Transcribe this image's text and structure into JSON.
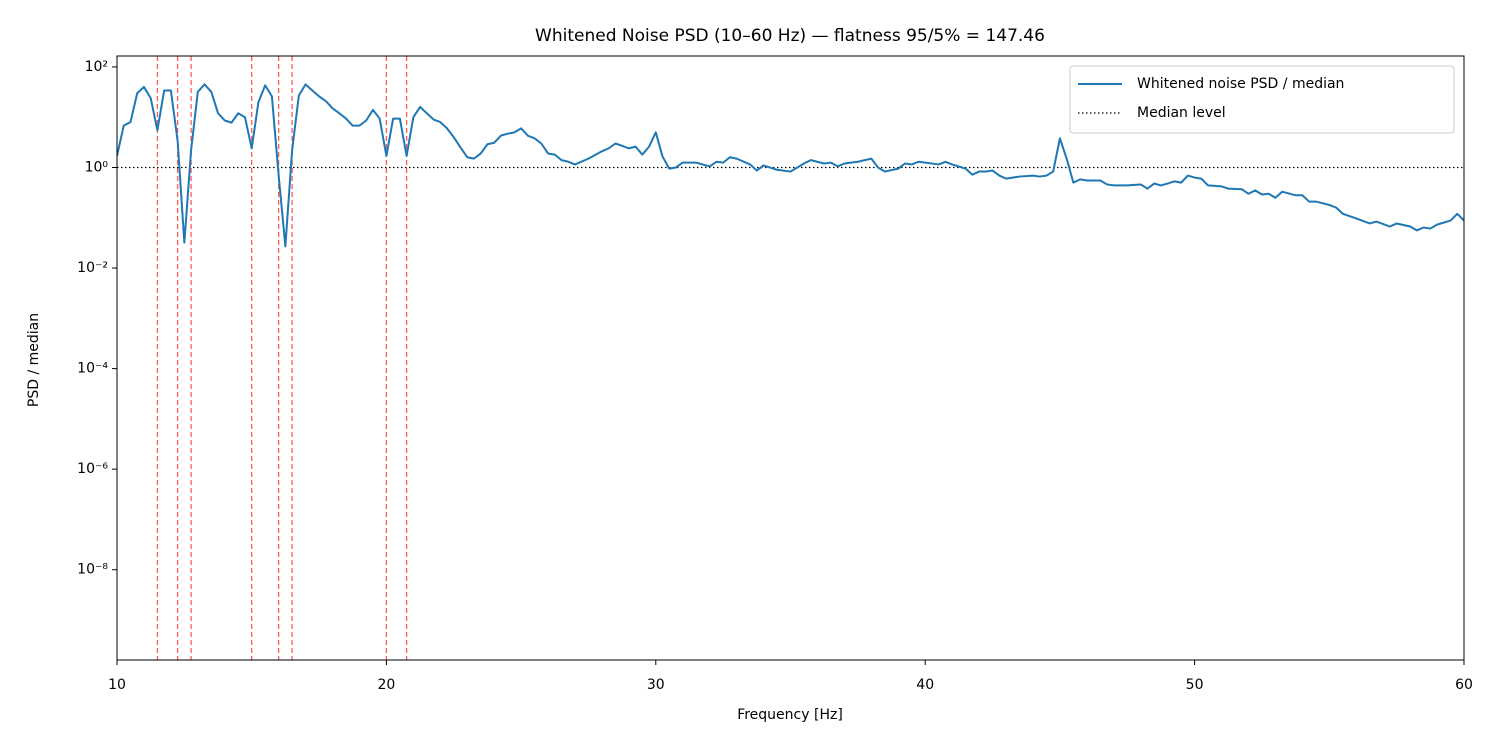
{
  "chart_data": {
    "type": "line",
    "title": "Whitened Noise PSD (10–60 Hz) — flatness 95/5% = 147.46",
    "x_label": "Frequency [Hz]",
    "y_label": "PSD / median",
    "yscale": "log",
    "xlim": [
      10,
      60
    ],
    "ylim": [
      1.6e-10,
      165
    ],
    "xticks": [
      10,
      20,
      30,
      40,
      50,
      60
    ],
    "yticks": [
      {
        "value": 100,
        "label": "10²"
      },
      {
        "value": 1,
        "label": "10⁰"
      },
      {
        "value": 0.01,
        "label": "10⁻²"
      },
      {
        "value": 0.0001,
        "label": "10⁻⁴"
      },
      {
        "value": 1e-06,
        "label": "10⁻⁶"
      },
      {
        "value": 1e-08,
        "label": "10⁻⁸"
      }
    ],
    "legend_position": "upper right",
    "x": [
      10.0,
      10.25,
      10.5,
      10.75,
      11.0,
      11.25,
      11.5,
      11.75,
      12.0,
      12.25,
      12.5,
      12.75,
      13.0,
      13.25,
      13.5,
      13.75,
      14.0,
      14.25,
      14.5,
      14.75,
      15.0,
      15.25,
      15.5,
      15.75,
      16.0,
      16.25,
      16.5,
      16.75,
      17.0,
      17.25,
      17.5,
      17.75,
      18.0,
      18.25,
      18.5,
      18.75,
      19.0,
      19.25,
      19.5,
      19.75,
      20.0,
      20.25,
      20.5,
      20.75,
      21.0,
      21.25,
      21.5,
      21.75,
      22.0,
      22.25,
      22.5,
      22.75,
      23.0,
      23.25,
      23.5,
      23.75,
      24.0,
      24.25,
      24.5,
      24.75,
      25.0,
      25.25,
      25.5,
      25.75,
      26.0,
      26.25,
      26.5,
      26.75,
      27.0,
      27.5,
      28.0,
      28.25,
      28.5,
      28.75,
      29.0,
      29.25,
      29.5,
      29.75,
      30.0,
      30.25,
      30.5,
      30.75,
      31.0,
      31.5,
      32.0,
      32.25,
      32.5,
      32.75,
      33.0,
      33.5,
      33.75,
      34.0,
      34.5,
      35.0,
      35.5,
      35.75,
      36.25,
      36.5,
      36.75,
      37.0,
      37.5,
      38.0,
      38.25,
      38.5,
      39.0,
      39.25,
      39.5,
      39.75,
      40.0,
      40.5,
      40.75,
      41.0,
      41.5,
      41.75,
      42.0,
      42.25,
      42.5,
      42.75,
      43.0,
      43.5,
      44.0,
      44.25,
      44.5,
      44.75,
      45.0,
      45.25,
      45.5,
      45.75,
      46.0,
      46.5,
      46.75,
      47.0,
      47.5,
      48.0,
      48.25,
      48.5,
      48.75,
      49.0,
      49.25,
      49.5,
      49.75,
      50.0,
      50.25,
      50.5,
      51.0,
      51.25,
      51.75,
      52.0,
      52.25,
      52.5,
      52.75,
      53.0,
      53.25,
      53.75,
      54.0,
      54.25,
      54.5,
      55.0,
      55.25,
      55.5,
      56.0,
      56.5,
      56.75,
      57.25,
      57.5,
      58.0,
      58.25,
      58.5,
      58.75,
      59.0,
      59.5,
      59.75,
      60.0
    ],
    "series": [
      {
        "name": "Whitened noise PSD / median",
        "color": "#1f77b4",
        "values": [
          1.7,
          6.8,
          8,
          30,
          40,
          24,
          5.5,
          34,
          34,
          3.4,
          0.032,
          2.2,
          32,
          45,
          32,
          12,
          8.6,
          7.8,
          12,
          10,
          2.4,
          20,
          43,
          26,
          0.7,
          0.027,
          2.2,
          27,
          45,
          34,
          26,
          21,
          15,
          12,
          9.4,
          6.8,
          6.8,
          8.6,
          14,
          9.4,
          1.7,
          9.4,
          9.4,
          1.7,
          10,
          16,
          12,
          9,
          8,
          6,
          4,
          2.5,
          1.6,
          1.5,
          1.9,
          2.9,
          3.1,
          4.3,
          4.7,
          5,
          6,
          4.3,
          3.8,
          3,
          1.9,
          1.8,
          1.4,
          1.3,
          1.15,
          1.5,
          2.1,
          2.4,
          3,
          2.7,
          2.4,
          2.6,
          1.8,
          2.6,
          5,
          1.65,
          0.95,
          1,
          1.25,
          1.25,
          1.05,
          1.3,
          1.25,
          1.6,
          1.5,
          1.15,
          0.87,
          1.1,
          0.9,
          0.83,
          1.2,
          1.4,
          1.2,
          1.25,
          1.05,
          1.2,
          1.3,
          1.5,
          1,
          0.83,
          0.95,
          1.2,
          1.15,
          1.3,
          1.25,
          1.15,
          1.3,
          1.15,
          0.95,
          0.72,
          0.83,
          0.83,
          0.87,
          0.69,
          0.6,
          0.66,
          0.69,
          0.66,
          0.69,
          0.83,
          3.8,
          1.5,
          0.5,
          0.58,
          0.55,
          0.55,
          0.46,
          0.44,
          0.44,
          0.46,
          0.38,
          0.48,
          0.44,
          0.48,
          0.53,
          0.5,
          0.69,
          0.63,
          0.6,
          0.44,
          0.42,
          0.38,
          0.37,
          0.3,
          0.35,
          0.29,
          0.3,
          0.25,
          0.33,
          0.28,
          0.28,
          0.21,
          0.21,
          0.18,
          0.16,
          0.12,
          0.097,
          0.077,
          0.084,
          0.067,
          0.077,
          0.067,
          0.056,
          0.064,
          0.061,
          0.073,
          0.088,
          0.12,
          0.088
        ]
      }
    ],
    "reference_line": {
      "name": "Median level",
      "y": 1,
      "color": "#000000"
    },
    "vertical_lines": {
      "color": "#ff0000",
      "x": [
        11.5,
        12.25,
        12.75,
        15.0,
        16.0,
        16.5,
        20.0,
        20.75
      ]
    }
  }
}
